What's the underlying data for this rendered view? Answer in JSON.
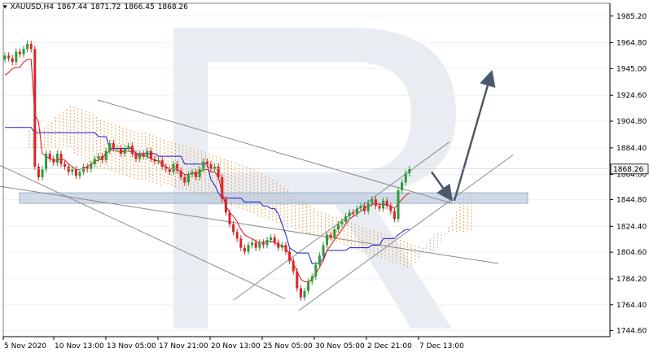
{
  "header": {
    "symbol": "XAUUSD,H4",
    "open": "1867.44",
    "high": "1871.72",
    "low": "1866.45",
    "close": "1868.26"
  },
  "colors": {
    "bull": "#2e9a3a",
    "bear": "#d6262a",
    "tenkan": "#e8121b",
    "kijun": "#1a1ad0",
    "cloud_up": "#e79a44",
    "cloud_down": "#b79bd6",
    "channel": "#8c8c8c",
    "arrow": "#4a5a6a",
    "zone": "#b9c8db",
    "last_price_bg": "#f2f2f2"
  },
  "chart_data": {
    "type": "candlestick",
    "symbol": "XAUUSD",
    "timeframe": "H4",
    "ylim": [
      1740,
      1995
    ],
    "yticks": [
      1985.2,
      1964.8,
      1945.0,
      1924.6,
      1904.8,
      1884.4,
      1864.0,
      1844.8,
      1824.4,
      1804.6,
      1784.2,
      1764.4,
      1744.6
    ],
    "ytick_labels": [
      "1985.20",
      "1964.80",
      "1945.00",
      "1924.60",
      "1904.80",
      "1884.40",
      "1864.00",
      "1844.80",
      "1824.40",
      "1804.60",
      "1784.20",
      "1764.40",
      "1744.60"
    ],
    "xtick_labels": [
      "5 Nov 2020",
      "10 Nov 13:00",
      "13 Nov 05:00",
      "17 Nov 21:00",
      "20 Nov 13:00",
      "25 Nov 05:00",
      "30 Nov 05:00",
      "2 Dec 21:00",
      "7 Dec 13:00"
    ],
    "last_price": 1868.26,
    "last_price_label": "1868.26",
    "support_zone": [
      1842,
      1850
    ],
    "close": [
      1955,
      1953,
      1950,
      1958,
      1956,
      1960,
      1964,
      1960,
      1870,
      1862,
      1868,
      1880,
      1876,
      1873,
      1880,
      1872,
      1870,
      1866,
      1868,
      1863,
      1866,
      1870,
      1868,
      1872,
      1876,
      1878,
      1875,
      1882,
      1888,
      1884,
      1884,
      1880,
      1884,
      1886,
      1880,
      1876,
      1880,
      1878,
      1882,
      1876,
      1874,
      1875,
      1870,
      1868,
      1866,
      1872,
      1867,
      1862,
      1858,
      1864,
      1866,
      1862,
      1868,
      1874,
      1872,
      1868,
      1870,
      1862,
      1845,
      1835,
      1826,
      1820,
      1815,
      1808,
      1805,
      1810,
      1812,
      1808,
      1812,
      1810,
      1814,
      1816,
      1812,
      1808,
      1810,
      1805,
      1798,
      1790,
      1777,
      1770,
      1775,
      1782,
      1786,
      1795,
      1802,
      1810,
      1818,
      1816,
      1822,
      1826,
      1828,
      1832,
      1835,
      1834,
      1838,
      1840,
      1836,
      1842,
      1845,
      1840,
      1838,
      1844,
      1840,
      1836,
      1830,
      1852,
      1858,
      1865,
      1868.26
    ],
    "tenkan": [
      1940,
      1942,
      1945,
      1946,
      1946,
      1950,
      1952,
      1952,
      1910,
      1904,
      1880,
      1878,
      1876,
      1875,
      1875,
      1876,
      1875,
      1872,
      1870,
      1868,
      1868,
      1869,
      1870,
      1872,
      1874,
      1875,
      1877,
      1880,
      1882,
      1883,
      1882,
      1881,
      1882,
      1882,
      1881,
      1879,
      1879,
      1878,
      1878,
      1876,
      1875,
      1874,
      1872,
      1870,
      1868,
      1869,
      1868,
      1866,
      1864,
      1864,
      1865,
      1865,
      1866,
      1868,
      1868,
      1866,
      1866,
      1862,
      1850,
      1840,
      1835,
      1832,
      1828,
      1822,
      1818,
      1816,
      1815,
      1813,
      1812,
      1812,
      1813,
      1813,
      1812,
      1810,
      1810,
      1808,
      1802,
      1796,
      1790,
      1784,
      1782,
      1782,
      1784,
      1788,
      1793,
      1798,
      1806,
      1810,
      1814,
      1818,
      1822,
      1826,
      1830,
      1832,
      1834,
      1836,
      1838,
      1840,
      1841,
      1842,
      1841,
      1841,
      1841,
      1840,
      1838,
      1842,
      1845,
      1848,
      1850
    ],
    "kijun": [
      1900,
      1900,
      1900,
      1900,
      1900,
      1900,
      1900,
      1900,
      1896,
      1896,
      1896,
      1896,
      1896,
      1896,
      1896,
      1896,
      1896,
      1896,
      1896,
      1896,
      1896,
      1896,
      1896,
      1896,
      1896,
      1893,
      1893,
      1893,
      1884,
      1884,
      1884,
      1884,
      1884,
      1884,
      1884,
      1880,
      1880,
      1880,
      1880,
      1880,
      1880,
      1878,
      1878,
      1878,
      1878,
      1878,
      1878,
      1878,
      1872,
      1872,
      1872,
      1872,
      1872,
      1872,
      1872,
      1860,
      1856,
      1850,
      1846,
      1846,
      1846,
      1846,
      1846,
      1846,
      1843,
      1843,
      1843,
      1843,
      1843,
      1840,
      1840,
      1838,
      1838,
      1834,
      1826,
      1818,
      1808,
      1806,
      1804,
      1804,
      1804,
      1804,
      1796,
      1796,
      1796,
      1800,
      1806,
      1806,
      1806,
      1806,
      1806,
      1806,
      1808,
      1808,
      1808,
      1808,
      1808,
      1808,
      1810,
      1810,
      1810,
      1815,
      1815,
      1815,
      1815,
      1818,
      1820,
      1822,
      1822
    ],
    "cloud_a": [
      1898,
      1898,
      1898,
      1898,
      1900,
      1902,
      1904,
      1908,
      1910,
      1912,
      1914,
      1916,
      1916,
      1915,
      1914,
      1913,
      1912,
      1910,
      1908,
      1906,
      1905,
      1904,
      1903,
      1902,
      1901,
      1900,
      1899,
      1898,
      1897,
      1896,
      1896,
      1896,
      1895,
      1894,
      1893,
      1892,
      1891,
      1890,
      1889,
      1888,
      1887,
      1886,
      1886,
      1885,
      1884,
      1883,
      1882,
      1881,
      1880,
      1879,
      1878,
      1877,
      1876,
      1875,
      1874,
      1873,
      1872,
      1871,
      1870,
      1869,
      1868,
      1866,
      1865,
      1863,
      1862,
      1860,
      1858,
      1856,
      1854,
      1852,
      1850,
      1848,
      1846,
      1844,
      1842,
      1840,
      1838,
      1836,
      1835,
      1834,
      1833,
      1832,
      1831,
      1830,
      1829,
      1828,
      1827,
      1826,
      1825,
      1824,
      1823,
      1822,
      1821,
      1820,
      1819,
      1818,
      1817,
      1816,
      1815,
      1814,
      1813,
      1812,
      1811,
      1810,
      1809,
      1808,
      1807,
      1806,
      1805,
      1808,
      1812,
      1818,
      1824,
      1830,
      1836,
      1842,
      1846,
      1848,
      1850
    ],
    "cloud_b": [
      1884,
      1884,
      1884,
      1884,
      1884,
      1884,
      1884,
      1884,
      1884,
      1884,
      1884,
      1884,
      1880,
      1878,
      1876,
      1874,
      1872,
      1870,
      1869,
      1868,
      1868,
      1867,
      1866,
      1865,
      1864,
      1863,
      1862,
      1862,
      1861,
      1860,
      1860,
      1859,
      1858,
      1858,
      1857,
      1856,
      1856,
      1855,
      1855,
      1854,
      1853,
      1852,
      1851,
      1850,
      1849,
      1848,
      1847,
      1846,
      1845,
      1844,
      1843,
      1842,
      1841,
      1840,
      1839,
      1838,
      1837,
      1836,
      1835,
      1834,
      1833,
      1832,
      1831,
      1830,
      1829,
      1828,
      1827,
      1826,
      1825,
      1824,
      1823,
      1822,
      1821,
      1820,
      1819,
      1818,
      1817,
      1816,
      1815,
      1814,
      1813,
      1812,
      1811,
      1810,
      1809,
      1808,
      1807,
      1806,
      1805,
      1804,
      1803,
      1802,
      1801,
      1800,
      1799,
      1798,
      1797,
      1796,
      1795,
      1794,
      1793,
      1793,
      1794,
      1796,
      1800,
      1805,
      1810,
      1815,
      1818,
      1820,
      1820,
      1820,
      1820,
      1820,
      1820,
      1820,
      1820,
      1820,
      1820,
      1820,
      1820
    ]
  }
}
